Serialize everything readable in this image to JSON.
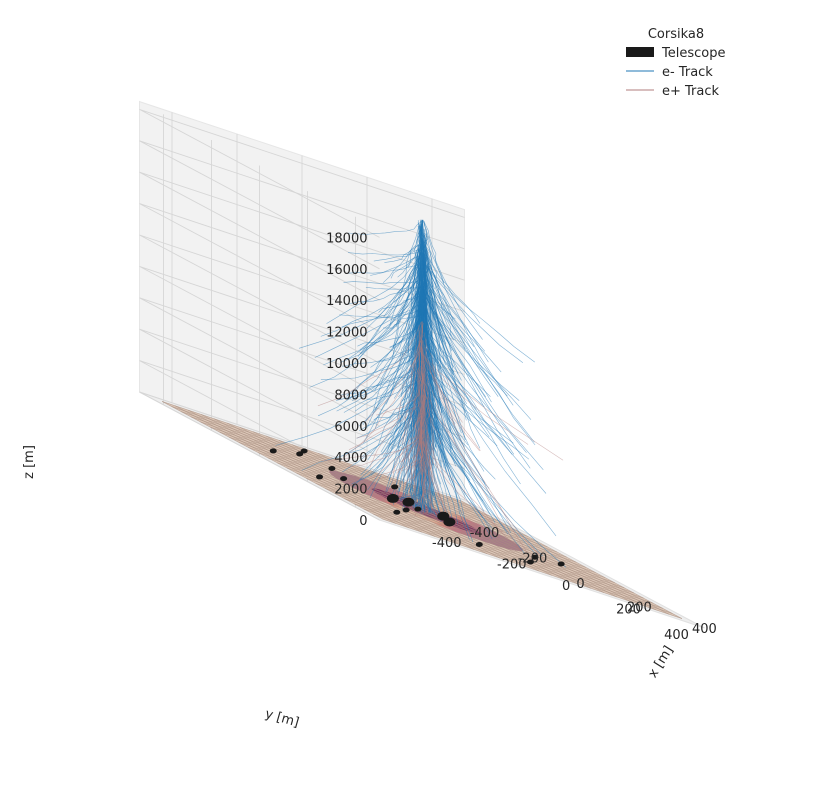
{
  "chart_data": {
    "type": "scatter",
    "projection": "3d",
    "title": "",
    "legend": {
      "title": "Corsika8",
      "placement": "top-right",
      "entries": [
        {
          "label": "Telescope",
          "color": "#1a1a1a",
          "kind": "patch"
        },
        {
          "label": "e- Track",
          "color": "#1f77b4",
          "kind": "line"
        },
        {
          "label": "e+ Track",
          "color": "#b07c7c",
          "kind": "line"
        }
      ]
    },
    "axes": {
      "x": {
        "label": "x [m]",
        "range": [
          -500,
          500
        ],
        "ticks": [
          -400,
          -200,
          0,
          200,
          400
        ]
      },
      "y": {
        "label": "y [m]",
        "range": [
          -500,
          500
        ],
        "ticks": [
          -400,
          -200,
          0,
          200,
          400
        ]
      },
      "z": {
        "label": "z [m]",
        "range": [
          0,
          18500
        ],
        "ticks": [
          0,
          2000,
          4000,
          6000,
          8000,
          10000,
          12000,
          14000,
          16000,
          18000
        ]
      }
    },
    "grid": true,
    "ground_colormap": [
      "#d9c2b1",
      "#e09a7c",
      "#de5a4f",
      "#b02b5a",
      "#6b2156"
    ],
    "telescopes": [
      {
        "x": -60,
        "y": -40,
        "size": "large"
      },
      {
        "x": 10,
        "y": -70,
        "size": "large"
      },
      {
        "x": 40,
        "y": 60,
        "size": "large"
      },
      {
        "x": 80,
        "y": -20,
        "size": "large"
      },
      {
        "x": -20,
        "y": 10,
        "size": "small"
      },
      {
        "x": -160,
        "y": -110,
        "size": "small"
      },
      {
        "x": -140,
        "y": -320,
        "size": "small"
      },
      {
        "x": -310,
        "y": -200,
        "size": "small"
      },
      {
        "x": -330,
        "y": 20,
        "size": "small"
      },
      {
        "x": -130,
        "y": 110,
        "size": "small"
      },
      {
        "x": -240,
        "y": 220,
        "size": "small"
      },
      {
        "x": -100,
        "y": -240,
        "size": "small"
      },
      {
        "x": -60,
        "y": -410,
        "size": "small"
      },
      {
        "x": 130,
        "y": -290,
        "size": "small"
      },
      {
        "x": 200,
        "y": 200,
        "size": "small"
      },
      {
        "x": 90,
        "y": 330,
        "size": "small"
      },
      {
        "x": -60,
        "y": 320,
        "size": "small"
      },
      {
        "x": 310,
        "y": 160,
        "size": "small"
      }
    ],
    "series": [
      {
        "name": "e- Track",
        "color": "#1f77b4",
        "core_top_z": 18500
      },
      {
        "name": "e+ Track",
        "color": "#b07c7c",
        "core_top_z": 12000
      }
    ]
  }
}
